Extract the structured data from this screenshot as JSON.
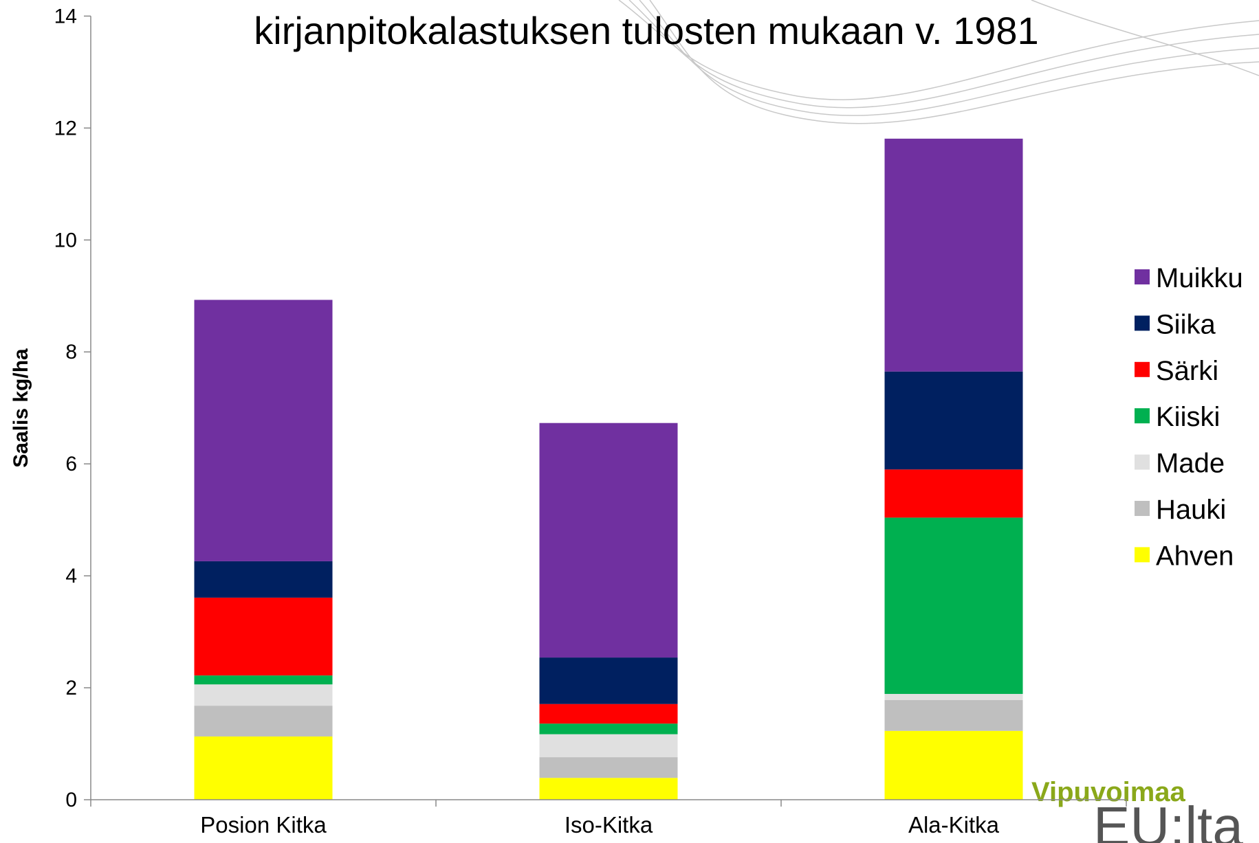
{
  "chart_data": {
    "type": "stacked_bar",
    "title": "kirjanpitokalastuksen tulosten mukaan v. 1981",
    "y_label": "Saalis kg/ha",
    "categories": [
      "Posion Kitka",
      "Iso-Kitka",
      "Ala-Kitka"
    ],
    "series": [
      {
        "name": "Ahven",
        "color": "#ffff00",
        "values": [
          1.13,
          0.39,
          1.23
        ]
      },
      {
        "name": "Hauki",
        "color": "#bfbfbf",
        "values": [
          0.55,
          0.37,
          0.55
        ]
      },
      {
        "name": "Made",
        "color": "#e0e0e0",
        "values": [
          0.38,
          0.41,
          0.11
        ]
      },
      {
        "name": "Kiiski",
        "color": "#00b050",
        "values": [
          0.16,
          0.19,
          3.15
        ]
      },
      {
        "name": "Särki",
        "color": "#ff0000",
        "values": [
          1.39,
          0.35,
          0.86
        ]
      },
      {
        "name": "Siika",
        "color": "#002060",
        "values": [
          0.65,
          0.83,
          1.75
        ]
      },
      {
        "name": "Muikku",
        "color": "#7030a0",
        "values": [
          4.67,
          4.19,
          4.16
        ]
      }
    ],
    "ylim": [
      0,
      14
    ],
    "yticks": [
      0,
      2,
      4,
      6,
      8,
      10,
      12,
      14
    ],
    "legend": "right",
    "logo": [
      "Vipuvoimaa",
      "EU:lta"
    ]
  }
}
